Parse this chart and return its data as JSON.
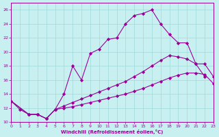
{
  "xlabel": "Windchill (Refroidissement éolien,°C)",
  "xlim": [
    0,
    23
  ],
  "ylim": [
    10,
    27
  ],
  "yticks": [
    10,
    12,
    14,
    16,
    18,
    20,
    22,
    24,
    26
  ],
  "xticks": [
    0,
    1,
    2,
    3,
    4,
    5,
    6,
    7,
    8,
    9,
    10,
    11,
    12,
    13,
    14,
    15,
    16,
    17,
    18,
    19,
    20,
    21,
    22,
    23
  ],
  "bg_color": "#c8f0f0",
  "grid_color": "#a0d8d8",
  "line_color": "#990099",
  "line1_x": [
    0,
    1,
    2,
    3,
    4,
    5,
    6,
    7,
    8,
    9,
    10,
    11,
    12,
    13,
    14,
    15,
    16,
    17,
    18,
    19,
    20,
    21,
    22
  ],
  "line1_y": [
    13.0,
    11.8,
    11.1,
    11.1,
    10.5,
    11.8,
    14.0,
    18.0,
    16.0,
    19.8,
    20.4,
    21.8,
    22.0,
    24.0,
    25.2,
    25.5,
    26.0,
    24.0,
    22.5,
    21.3,
    21.3,
    18.3,
    16.5
  ],
  "line2_x": [
    0,
    2,
    3,
    4,
    5,
    6,
    7,
    8,
    9,
    10,
    11,
    12,
    13,
    14,
    15,
    16,
    17,
    18,
    19,
    20,
    21,
    22,
    23
  ],
  "line2_y": [
    13.0,
    11.1,
    11.1,
    10.5,
    11.8,
    12.3,
    12.8,
    13.3,
    13.8,
    14.3,
    14.8,
    15.3,
    15.8,
    16.5,
    17.2,
    18.0,
    18.8,
    19.5,
    19.3,
    19.0,
    18.3,
    18.3,
    16.5
  ],
  "line3_x": [
    0,
    2,
    3,
    4,
    5,
    6,
    7,
    8,
    9,
    10,
    11,
    12,
    13,
    14,
    15,
    16,
    17,
    18,
    19,
    20,
    21,
    22,
    23
  ],
  "line3_y": [
    13.0,
    11.1,
    11.1,
    10.5,
    11.8,
    12.0,
    12.2,
    12.5,
    12.8,
    13.1,
    13.4,
    13.7,
    14.0,
    14.4,
    14.8,
    15.3,
    15.8,
    16.3,
    16.7,
    17.0,
    17.0,
    16.8,
    15.5
  ]
}
